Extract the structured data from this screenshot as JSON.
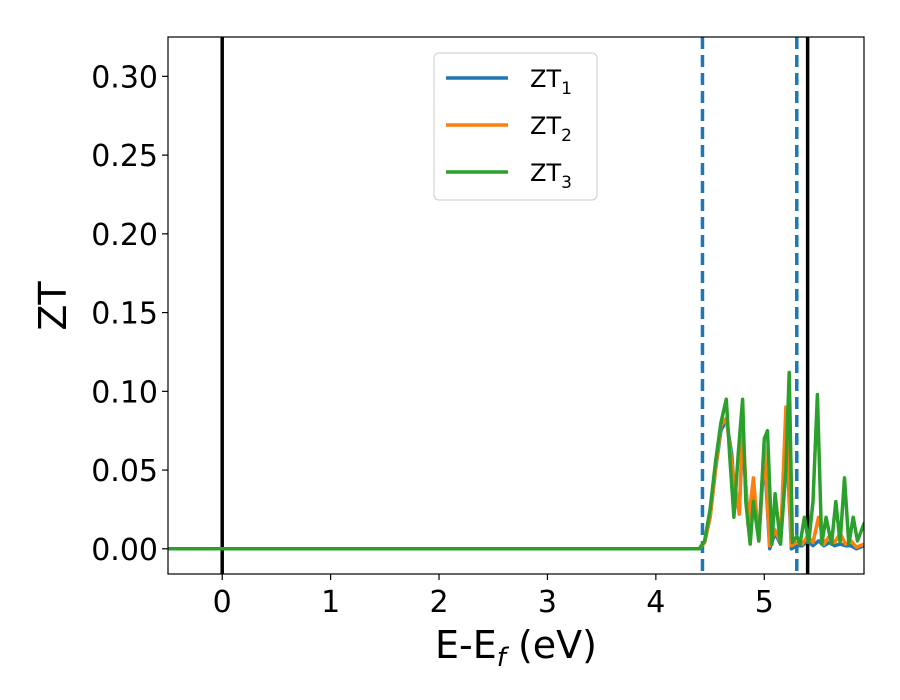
{
  "chart_data": {
    "type": "line",
    "xlabel": "E-E",
    "xlabel_sub": "f",
    "xlabel_unit": "(eV)",
    "ylabel": "ZT",
    "xlim": [
      -0.5,
      5.92
    ],
    "ylim": [
      -0.016,
      0.325
    ],
    "xticks": [
      0,
      1,
      2,
      3,
      4,
      5
    ],
    "xtick_labels": [
      "0",
      "1",
      "2",
      "3",
      "4",
      "5"
    ],
    "yticks": [
      0.0,
      0.05,
      0.1,
      0.15,
      0.2,
      0.25,
      0.3
    ],
    "ytick_labels": [
      "0.00",
      "0.05",
      "0.10",
      "0.15",
      "0.20",
      "0.25",
      "0.30"
    ],
    "grid": false,
    "legend_position": "top-center",
    "vertical_lines": [
      {
        "x": 0.0,
        "style": "solid",
        "color": "#000000"
      },
      {
        "x": 5.4,
        "style": "solid",
        "color": "#000000"
      },
      {
        "x": 4.43,
        "style": "dashed",
        "color": "#1f77b4"
      },
      {
        "x": 5.3,
        "style": "dashed",
        "color": "#1f77b4"
      }
    ],
    "series": [
      {
        "name": "ZT",
        "name_sub": "1",
        "color": "#1f77b4",
        "x": [
          -0.5,
          4.4,
          4.45,
          4.5,
          4.55,
          4.6,
          4.65,
          4.7,
          4.73,
          4.77,
          4.8,
          4.85,
          4.9,
          4.95,
          5.0,
          5.05,
          5.1,
          5.15,
          5.2,
          5.25,
          5.3,
          5.35,
          5.4,
          5.45,
          5.5,
          5.55,
          5.6,
          5.65,
          5.7,
          5.75,
          5.8,
          5.85,
          5.92
        ],
        "y": [
          0.0,
          0.0,
          0.004,
          0.02,
          0.05,
          0.075,
          0.082,
          0.06,
          0.03,
          0.025,
          0.07,
          0.02,
          0.04,
          0.005,
          0.06,
          0.0,
          0.01,
          0.003,
          0.08,
          0.0,
          0.002,
          0.002,
          0.005,
          0.002,
          0.005,
          0.002,
          0.004,
          0.002,
          0.003,
          0.002,
          0.002,
          0.0,
          0.002
        ]
      },
      {
        "name": "ZT",
        "name_sub": "2",
        "color": "#ff7f0e",
        "x": [
          -0.5,
          4.4,
          4.45,
          4.5,
          4.55,
          4.6,
          4.65,
          4.7,
          4.73,
          4.77,
          4.8,
          4.85,
          4.9,
          4.95,
          5.0,
          5.05,
          5.1,
          5.15,
          5.2,
          5.25,
          5.3,
          5.35,
          5.4,
          5.45,
          5.5,
          5.55,
          5.6,
          5.65,
          5.7,
          5.75,
          5.8,
          5.85,
          5.92
        ],
        "y": [
          0.0,
          0.0,
          0.004,
          0.02,
          0.05,
          0.078,
          0.083,
          0.055,
          0.04,
          0.022,
          0.08,
          0.015,
          0.045,
          0.005,
          0.065,
          0.002,
          0.012,
          0.004,
          0.09,
          0.002,
          0.004,
          0.003,
          0.008,
          0.004,
          0.02,
          0.003,
          0.008,
          0.004,
          0.01,
          0.003,
          0.005,
          0.001,
          0.003
        ]
      },
      {
        "name": "ZT",
        "name_sub": "3",
        "color": "#2ca02c",
        "x": [
          -0.5,
          4.4,
          4.45,
          4.5,
          4.55,
          4.6,
          4.65,
          4.68,
          4.72,
          4.76,
          4.8,
          4.83,
          4.87,
          4.9,
          4.95,
          5.0,
          5.03,
          5.07,
          5.1,
          5.15,
          5.2,
          5.23,
          5.26,
          5.3,
          5.33,
          5.37,
          5.41,
          5.45,
          5.49,
          5.53,
          5.57,
          5.62,
          5.66,
          5.7,
          5.74,
          5.78,
          5.82,
          5.86,
          5.92
        ],
        "y": [
          0.0,
          0.0,
          0.005,
          0.025,
          0.055,
          0.08,
          0.095,
          0.06,
          0.02,
          0.06,
          0.095,
          0.03,
          0.003,
          0.03,
          0.005,
          0.07,
          0.075,
          0.003,
          0.035,
          0.003,
          0.05,
          0.112,
          0.004,
          0.008,
          0.003,
          0.02,
          0.004,
          0.03,
          0.098,
          0.003,
          0.02,
          0.003,
          0.03,
          0.004,
          0.045,
          0.003,
          0.02,
          0.005,
          0.016
        ]
      }
    ]
  }
}
